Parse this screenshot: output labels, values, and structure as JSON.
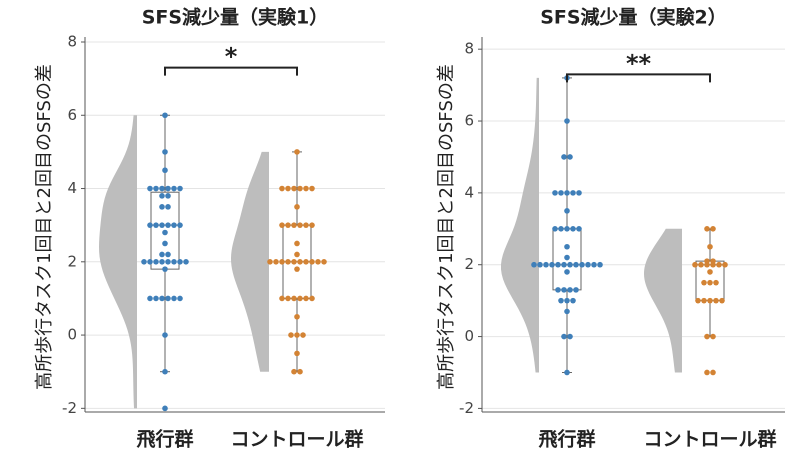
{
  "chart_data": [
    {
      "type": "raincloud",
      "title": "SFS減少量（実験1）",
      "ylabel": "高所歩行タスク1回目と2回目のSFSの差",
      "categories": [
        "飛行群",
        "コントロール群"
      ],
      "groups": [
        {
          "color": "#3f7fb9",
          "values": [
            6,
            5,
            4.5,
            4,
            4,
            4,
            4,
            4,
            4,
            3.8,
            3.8,
            3.5,
            3.5,
            3,
            3,
            3,
            3,
            3,
            3,
            2.8,
            2.5,
            2.2,
            2.2,
            2,
            2,
            2,
            2,
            2,
            2,
            2,
            2,
            1.8,
            1,
            1,
            1,
            1,
            1,
            1,
            0,
            -1,
            -2
          ],
          "box": {
            "whisker_low": -1,
            "q1": 1.8,
            "median": 3,
            "q3": 3.9,
            "whisker_high": 6
          }
        },
        {
          "color": "#d38334",
          "values": [
            5,
            4,
            4,
            4,
            4,
            4,
            4,
            3.5,
            3,
            3,
            3,
            3,
            3,
            3,
            2.5,
            2.2,
            2,
            2,
            2,
            2,
            2,
            2,
            2,
            2,
            2,
            2,
            1.8,
            1,
            1,
            1,
            1,
            1,
            1,
            0.5,
            0,
            0,
            0,
            -0.5,
            -1,
            -1
          ],
          "box": {
            "whisker_low": -1,
            "q1": 1,
            "median": 2,
            "q3": 3,
            "whisker_high": 5
          }
        }
      ],
      "annotation": "*",
      "ylim": [
        -2.1,
        8
      ],
      "yticks": [
        -2,
        0,
        2,
        4,
        6,
        8
      ],
      "grid": true
    },
    {
      "type": "raincloud",
      "title": "SFS減少量（実験2）",
      "ylabel": "高所歩行タスク1回目と2回目のSFSの差",
      "categories": [
        "飛行群",
        "コントロール群"
      ],
      "groups": [
        {
          "color": "#3f7fb9",
          "values": [
            7.2,
            6,
            5,
            5,
            4,
            4,
            4,
            4,
            4,
            3.5,
            3,
            3,
            3,
            3,
            3,
            2.5,
            2.2,
            2,
            2,
            2,
            2,
            2,
            2,
            2,
            2,
            2,
            2,
            2,
            2,
            1.8,
            1.3,
            1.3,
            1.3,
            1.3,
            1,
            1,
            1,
            0.7,
            0,
            0,
            -1
          ],
          "box": {
            "whisker_low": -1,
            "q1": 1.3,
            "median": 2,
            "q3": 3,
            "whisker_high": 7.2
          }
        },
        {
          "color": "#d38334",
          "values": [
            3,
            3,
            2.5,
            2.1,
            2.1,
            2,
            2,
            2,
            2,
            2,
            2,
            1.8,
            1.5,
            1.5,
            1.5,
            1,
            1,
            1,
            1,
            1,
            0,
            0,
            -1,
            -1
          ],
          "box": {
            "whisker_low": 0,
            "q1": 1,
            "median": 2,
            "q3": 2.1,
            "whisker_high": 3
          }
        }
      ],
      "annotation": "**",
      "ylim": [
        -2.1,
        8.2
      ],
      "yticks": [
        -2,
        0,
        2,
        4,
        6,
        8
      ],
      "grid": true
    }
  ]
}
